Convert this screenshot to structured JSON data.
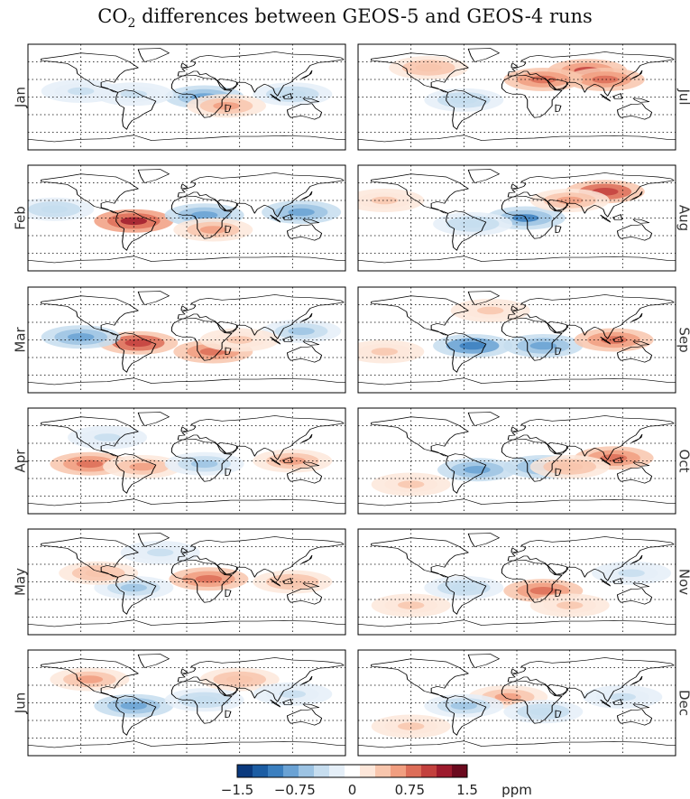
{
  "title": {
    "prefix": "CO",
    "subscript": "2",
    "suffix": " differences between GEOS-5 and GEOS-4 runs"
  },
  "chart_data": {
    "type": "heatmap",
    "title": "CO2 differences between GEOS-5 and GEOS-4 runs",
    "description_of_panels": "12 monthly global maps of CO2 difference",
    "panels": [
      {
        "month": "Jan",
        "column": "left",
        "row": 0,
        "features": [
          {
            "lon": 20,
            "lat": 0,
            "value": -1.1
          },
          {
            "lon": 120,
            "lat": 5,
            "value": -0.6
          },
          {
            "lon": -60,
            "lat": 5,
            "value": -0.4
          },
          {
            "lon": 45,
            "lat": -15,
            "value": 0.8
          },
          {
            "lon": -120,
            "lat": 10,
            "value": -0.4
          }
        ]
      },
      {
        "month": "Feb",
        "column": "left",
        "row": 1,
        "features": [
          {
            "lon": -60,
            "lat": -5,
            "value": 1.5
          },
          {
            "lon": 20,
            "lat": 5,
            "value": -1.1
          },
          {
            "lon": 130,
            "lat": 10,
            "value": -0.9
          },
          {
            "lon": -150,
            "lat": 15,
            "value": -0.6
          },
          {
            "lon": 30,
            "lat": -20,
            "value": 0.7
          }
        ]
      },
      {
        "month": "Mar",
        "column": "left",
        "row": 2,
        "features": [
          {
            "lon": -55,
            "lat": -5,
            "value": 1.3
          },
          {
            "lon": 30,
            "lat": -20,
            "value": 1.0
          },
          {
            "lon": -120,
            "lat": 5,
            "value": -0.9
          },
          {
            "lon": 130,
            "lat": 15,
            "value": -0.8
          },
          {
            "lon": 60,
            "lat": 0,
            "value": 0.5
          }
        ]
      },
      {
        "month": "Apr",
        "column": "left",
        "row": 3,
        "features": [
          {
            "lon": -110,
            "lat": -5,
            "value": 0.9
          },
          {
            "lon": -50,
            "lat": -10,
            "value": 0.7
          },
          {
            "lon": 120,
            "lat": 0,
            "value": 0.8
          },
          {
            "lon": 20,
            "lat": -5,
            "value": -0.7
          },
          {
            "lon": -90,
            "lat": 40,
            "value": -0.4
          }
        ]
      },
      {
        "month": "May",
        "column": "left",
        "row": 4,
        "features": [
          {
            "lon": -60,
            "lat": -10,
            "value": -0.8
          },
          {
            "lon": 25,
            "lat": 5,
            "value": 1.0
          },
          {
            "lon": -100,
            "lat": 15,
            "value": 0.6
          },
          {
            "lon": 120,
            "lat": 0,
            "value": 0.6
          },
          {
            "lon": -30,
            "lat": 50,
            "value": -0.4
          }
        ]
      },
      {
        "month": "Jun",
        "column": "left",
        "row": 5,
        "features": [
          {
            "lon": -60,
            "lat": -5,
            "value": -1.1
          },
          {
            "lon": -110,
            "lat": 40,
            "value": 0.8
          },
          {
            "lon": 60,
            "lat": 40,
            "value": 0.6
          },
          {
            "lon": 20,
            "lat": 5,
            "value": -0.6
          },
          {
            "lon": 120,
            "lat": 15,
            "value": -0.5
          }
        ]
      },
      {
        "month": "Jul",
        "column": "right",
        "row": 0,
        "features": [
          {
            "lon": 80,
            "lat": 45,
            "value": 1.2
          },
          {
            "lon": 100,
            "lat": 30,
            "value": 1.0
          },
          {
            "lon": 30,
            "lat": 30,
            "value": 0.9
          },
          {
            "lon": -100,
            "lat": 50,
            "value": 0.6
          },
          {
            "lon": -60,
            "lat": -5,
            "value": -0.6
          }
        ]
      },
      {
        "month": "Aug",
        "column": "right",
        "row": 1,
        "features": [
          {
            "lon": 100,
            "lat": 45,
            "value": 1.3
          },
          {
            "lon": 10,
            "lat": 0,
            "value": -1.2
          },
          {
            "lon": -50,
            "lat": -10,
            "value": -0.6
          },
          {
            "lon": 60,
            "lat": 30,
            "value": 0.7
          },
          {
            "lon": -150,
            "lat": 30,
            "value": 0.4
          }
        ]
      },
      {
        "month": "Sep",
        "column": "right",
        "row": 2,
        "features": [
          {
            "lon": -50,
            "lat": -10,
            "value": -1.3
          },
          {
            "lon": 30,
            "lat": -10,
            "value": -1.1
          },
          {
            "lon": 110,
            "lat": 0,
            "value": 1.0
          },
          {
            "lon": -30,
            "lat": 50,
            "value": 0.5
          },
          {
            "lon": -150,
            "lat": -20,
            "value": 0.4
          }
        ]
      },
      {
        "month": "Oct",
        "column": "right",
        "row": 3,
        "features": [
          {
            "lon": -45,
            "lat": -15,
            "value": -0.9
          },
          {
            "lon": 30,
            "lat": -10,
            "value": -1.0
          },
          {
            "lon": 110,
            "lat": 5,
            "value": 1.0
          },
          {
            "lon": -120,
            "lat": -40,
            "value": 0.4
          },
          {
            "lon": 60,
            "lat": -10,
            "value": 0.6
          }
        ]
      },
      {
        "month": "Nov",
        "column": "right",
        "row": 4,
        "features": [
          {
            "lon": 30,
            "lat": -15,
            "value": 1.0
          },
          {
            "lon": -60,
            "lat": -10,
            "value": -0.6
          },
          {
            "lon": 130,
            "lat": 15,
            "value": -0.5
          },
          {
            "lon": -120,
            "lat": -40,
            "value": 0.4
          },
          {
            "lon": 60,
            "lat": -40,
            "value": 0.4
          }
        ]
      },
      {
        "month": "Dec",
        "column": "right",
        "row": 5,
        "features": [
          {
            "lon": -10,
            "lat": 10,
            "value": 0.7
          },
          {
            "lon": -60,
            "lat": -5,
            "value": -0.7
          },
          {
            "lon": 30,
            "lat": -15,
            "value": -0.6
          },
          {
            "lon": 120,
            "lat": 10,
            "value": -0.5
          },
          {
            "lon": -120,
            "lat": -40,
            "value": 0.4
          }
        ]
      }
    ],
    "colorbar": {
      "min": -1.5,
      "max": 1.5,
      "tick_values": [
        -1.5,
        -0.75,
        0,
        0.75,
        1.5
      ],
      "tick_labels": [
        "−1.5",
        "−0.75",
        "0",
        "0.75",
        "1.5"
      ],
      "unit": "ppm",
      "colors": [
        "#0b3a7e",
        "#1c5da3",
        "#3b7fbf",
        "#6aa2d4",
        "#9cc3e3",
        "#c6ddef",
        "#e5eff8",
        "#ffffff",
        "#fde7da",
        "#f8c6ad",
        "#f19e80",
        "#dd6d58",
        "#c3413e",
        "#9d1b2d",
        "#6b0a1e"
      ]
    },
    "grid": "dotted",
    "land_outline_color": "#000000"
  }
}
